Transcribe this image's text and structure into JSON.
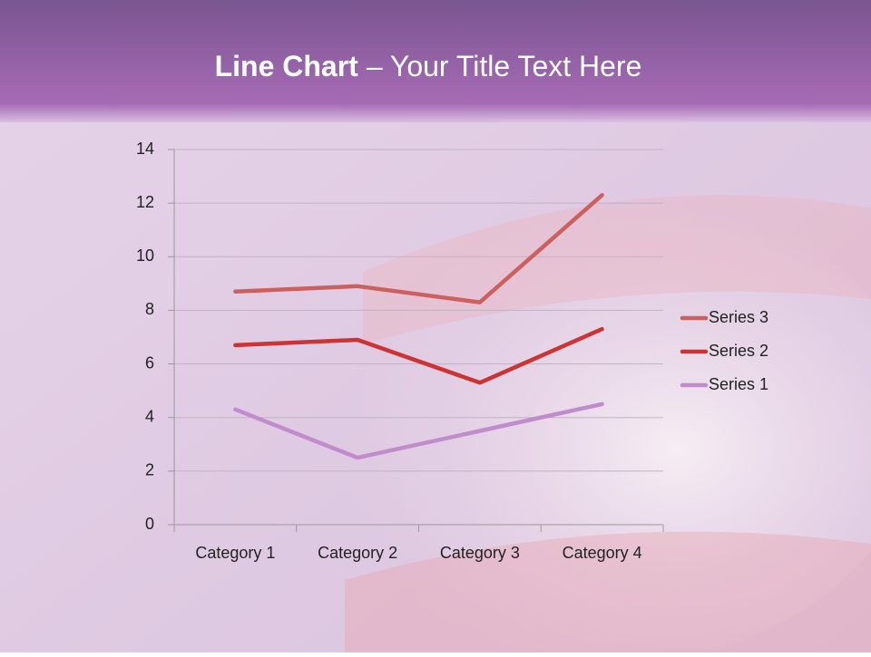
{
  "chart_data": {
    "type": "line",
    "stacked": true,
    "title": [
      "Line Chart",
      "– Your Title Text Here"
    ],
    "categories": [
      "Category 1",
      "Category 2",
      "Category 3",
      "Category 4"
    ],
    "series": [
      {
        "name": "Series 1",
        "color": "#c08ccc",
        "values": [
          4.3,
          2.5,
          3.5,
          4.5
        ]
      },
      {
        "name": "Series 2",
        "color": "#cc3333",
        "values": [
          2.4,
          4.4,
          1.8,
          2.8
        ]
      },
      {
        "name": "Series 3",
        "color": "#cc605e",
        "values": [
          2,
          2,
          3,
          5
        ]
      }
    ],
    "ylim": [
      0,
      14
    ],
    "yticks": [
      0,
      2,
      4,
      6,
      8,
      10,
      12,
      14
    ],
    "grid": true,
    "legend": "right"
  }
}
